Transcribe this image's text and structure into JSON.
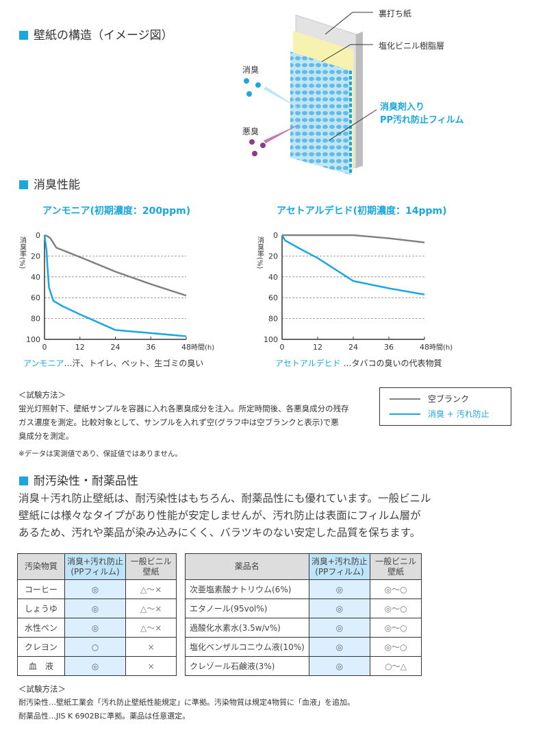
{
  "structure": {
    "heading": "壁紙の構造（イメージ図）",
    "labels": {
      "backing": "裏打ち紙",
      "pvc": "塩化ビニル樹脂層",
      "film_line1": "消臭剤入り",
      "film_line2": "PP汚れ防止フィルム",
      "deodorized": "消臭",
      "odor": "悪臭"
    }
  },
  "performance": {
    "heading": "消臭性能"
  },
  "chart_data": [
    {
      "type": "line",
      "title": "アンモニア(初期濃度：200ppm)",
      "ylabel": "消臭率(%)",
      "xlabel": "時間(h)",
      "xlim": [
        0,
        48
      ],
      "ylim": [
        0,
        100
      ],
      "y_inverted": true,
      "xticks": [
        "0",
        "12",
        "24",
        "36",
        "48"
      ],
      "yticks": [
        "0",
        "20",
        "40",
        "60",
        "80",
        "100"
      ],
      "grid": "horizontal-dashed",
      "series": [
        {
          "name": "空ブランク",
          "color": "#808080",
          "x": [
            0,
            1,
            2,
            4,
            12,
            24,
            36,
            48
          ],
          "y": [
            0,
            1,
            3,
            12,
            21,
            35,
            47,
            58
          ]
        },
        {
          "name": "消臭 + 汚れ防止",
          "color": "#1aa7e0",
          "x": [
            0,
            0.7,
            1,
            1.5,
            3,
            6,
            12,
            24,
            36,
            48
          ],
          "y": [
            0,
            15,
            30,
            50,
            63,
            68,
            76,
            91,
            94,
            97
          ]
        }
      ],
      "caption_term": "アンモニア",
      "caption_rest": "…汗、トイレ、ペット、生ゴミの臭い"
    },
    {
      "type": "line",
      "title": "アセトアルデヒド(初期濃度：14ppm)",
      "ylabel": "消臭率(%)",
      "xlabel": "時間(h)",
      "xlim": [
        0,
        48
      ],
      "ylim": [
        0,
        100
      ],
      "y_inverted": true,
      "xticks": [
        "0",
        "12",
        "24",
        "36",
        "48"
      ],
      "yticks": [
        "0",
        "20",
        "40",
        "60",
        "80",
        "100"
      ],
      "grid": "horizontal-dashed",
      "series": [
        {
          "name": "空ブランク",
          "color": "#808080",
          "x": [
            0,
            24,
            36,
            48
          ],
          "y": [
            0,
            0,
            3,
            7
          ]
        },
        {
          "name": "消臭 + 汚れ防止",
          "color": "#1aa7e0",
          "x": [
            0,
            1,
            6,
            12,
            24,
            36,
            48
          ],
          "y": [
            0,
            5,
            13,
            22,
            44,
            51,
            57
          ]
        }
      ],
      "caption_term": "アセトアルデヒド",
      "caption_rest": " …タバコの臭いの代表物質"
    }
  ],
  "legend": {
    "blank": "空ブランク",
    "pp": "消臭 + 汚れ防止"
  },
  "method1": {
    "title": "＜試験方法＞",
    "lines": [
      "蛍光灯照射下、壁紙サンプルを容器に入れ各悪臭成分を注入。所定時間後、各悪臭成分の残存",
      "ガス濃度を測定。比較対象として、サンプルを入れず空(グラフ中は空ブランクと表示)で悪",
      "臭成分を測定。"
    ],
    "note": "※データは実測値であり、保証値ではありません。"
  },
  "resistance": {
    "heading": "耐汚染性・耐薬品性",
    "paragraph": [
      "消臭＋汚れ防止壁紙は、耐汚染性はもちろん、耐薬品性にも優れています。一般ビニル",
      "壁紙には様々なタイプがあり性能が安定しませんが、汚れ防止は表面にフィルム層が",
      "あるため、汚れや薬品が染み込みにくく、バラツキのない安定した品質を保ちます。"
    ]
  },
  "stain_table": {
    "headers": [
      "汚染物質",
      "消臭+汚れ防止\n(PPフィルム)",
      "一般ビニル\n壁紙"
    ],
    "rows": [
      [
        "コーヒー",
        "◎",
        "△～×"
      ],
      [
        "しょうゆ",
        "◎",
        "△～×"
      ],
      [
        "水性ペン",
        "◎",
        "△～×"
      ],
      [
        "クレヨン",
        "○",
        "×"
      ],
      [
        "血　液",
        "◎",
        "×"
      ]
    ]
  },
  "chem_table": {
    "headers": [
      "薬品名",
      "消臭+汚れ防止\n(PPフィルム)",
      "一般ビニル\n壁紙"
    ],
    "rows": [
      [
        "次亜塩素酸ナトリウム(6%)",
        "◎",
        "◎～○"
      ],
      [
        "エタノール(95vol%)",
        "◎",
        "◎～○"
      ],
      [
        "過酸化水素水(3.5w/v%)",
        "◎",
        "◎～○"
      ],
      [
        "塩化ベンザルコニウム液(10%)",
        "◎",
        "◎～○"
      ],
      [
        "クレゾール石鹸液(3%)",
        "◎",
        "○～△"
      ]
    ]
  },
  "method2": {
    "title": "＜試験方法＞",
    "lines": [
      "耐汚染性…壁紙工業会「汚れ防止壁紙性能規定」に準拠。汚染物質は規定4物質に「血液」を追加。",
      "耐薬品性…JIS K 6902Bに準拠。薬品は任意選定。"
    ]
  }
}
